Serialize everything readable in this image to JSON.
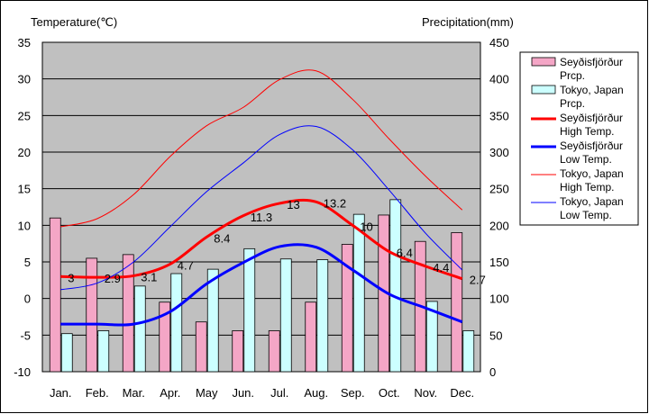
{
  "chart_data": {
    "type": "bar+line",
    "y_left_label": "Temperature(℃)",
    "y_right_label": "Precipitation(mm)",
    "y_left_lim": [
      -10,
      35
    ],
    "y_left_ticks": [
      -10,
      -5,
      0,
      5,
      10,
      15,
      20,
      25,
      30,
      35
    ],
    "y_right_lim": [
      0,
      450
    ],
    "y_right_ticks": [
      0,
      50,
      100,
      150,
      200,
      250,
      300,
      350,
      400,
      450
    ],
    "categories": [
      "Jan.",
      "Feb.",
      "Mar.",
      "Apr.",
      "May",
      "Jun.",
      "Jul.",
      "Aug.",
      "Sep.",
      "Oct.",
      "Nov.",
      "Dec."
    ],
    "precip_series": [
      {
        "name": "Seyðisfjörður Prcp.",
        "legend": [
          "Seyðisfjörður",
          "Prcp."
        ],
        "color": "#f4a6c6",
        "values": [
          210,
          155,
          160,
          95,
          68,
          56,
          56,
          95,
          174,
          214,
          178,
          190
        ]
      },
      {
        "name": "Tokyo, Japan Prcp.",
        "legend": [
          "Tokyo, Japan",
          "Prcp."
        ],
        "color": "#ccffff",
        "values": [
          52,
          56,
          117,
          134,
          140,
          168,
          154,
          153,
          215,
          235,
          96,
          56
        ]
      }
    ],
    "temp_series": [
      {
        "name": "Seyðisfjörður High Temp.",
        "legend": [
          "Seyðisfjörður",
          "High Temp."
        ],
        "color": "#ff0000",
        "width": 3,
        "values": [
          3.0,
          2.9,
          3.1,
          4.7,
          8.4,
          11.3,
          13.0,
          13.2,
          10.0,
          6.4,
          4.4,
          2.7
        ],
        "labels": [
          "3",
          "2.9",
          "3.1",
          "4.7",
          "8.4",
          "11.3",
          "13",
          "13.2",
          "10",
          "6.4",
          "4.4",
          "2.7"
        ]
      },
      {
        "name": "Seyðisfjörður Low Temp.",
        "legend": [
          "Seyðisfjörður",
          "Low Temp."
        ],
        "color": "#0000ff",
        "width": 3,
        "values": [
          -3.5,
          -3.5,
          -3.5,
          -1.8,
          2.0,
          4.9,
          7.1,
          7.0,
          3.9,
          0.6,
          -1.3,
          -3.2
        ]
      },
      {
        "name": "Tokyo, Japan High Temp.",
        "legend": [
          "Tokyo, Japan",
          "High Temp."
        ],
        "color": "#ff0000",
        "width": 1,
        "values": [
          9.8,
          10.9,
          14.2,
          19.4,
          23.6,
          26.1,
          29.9,
          31.1,
          27.2,
          21.8,
          16.7,
          12.1
        ]
      },
      {
        "name": "Tokyo, Japan Low Temp.",
        "legend": [
          "Tokyo, Japan",
          "Low Temp."
        ],
        "color": "#0000ff",
        "width": 1,
        "values": [
          1.2,
          2.1,
          5.0,
          9.8,
          14.6,
          18.5,
          22.4,
          23.5,
          20.3,
          14.8,
          8.9,
          3.9
        ]
      }
    ]
  }
}
